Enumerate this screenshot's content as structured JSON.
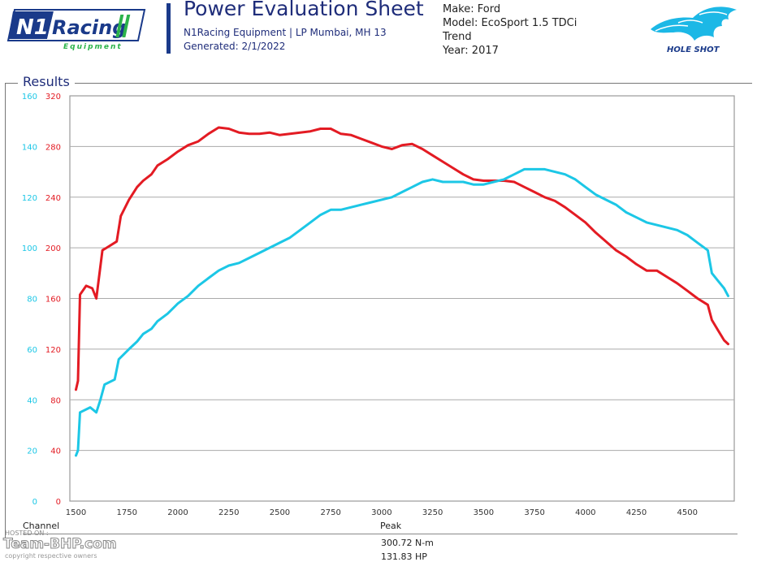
{
  "header": {
    "logo_text": "N1 Racing",
    "logo_sub": "Equipment",
    "title": "Power Evaluation Sheet",
    "subtitle": "N1Racing Equipment | LP Mumbai, MH 13",
    "generated": "Generated: 2/1/2022",
    "right_logo_text": "HOLE SHOT",
    "brand_color": "#1f2d7a"
  },
  "vehicle": {
    "make": "Make: Ford",
    "model": "Model: EcoSport 1.5 TDCi",
    "trend": "Trend",
    "year": "Year: 2017"
  },
  "section": {
    "label": "Results"
  },
  "table": {
    "channel_header": "Channel",
    "peak_header": "Peak",
    "peak_torque": "300.72 N-m",
    "peak_power": "131.83 HP"
  },
  "watermark": {
    "hosted": "HOSTED ON :",
    "brand": "Team-BHP.com",
    "copyright": "copyright respective owners"
  },
  "chart_data": {
    "type": "line",
    "x_ticks": [
      1500,
      1750,
      2000,
      2250,
      2500,
      2750,
      3000,
      3250,
      3500,
      3750,
      4000,
      4250,
      4500
    ],
    "xlim": [
      1470,
      4730
    ],
    "y_left_ticks": [
      0,
      40,
      80,
      120,
      160,
      200,
      240,
      280,
      320
    ],
    "y_left_lim": [
      0,
      320
    ],
    "y_right_ticks": [
      0,
      20,
      40,
      60,
      80,
      100,
      120,
      140,
      160
    ],
    "y_right_lim": [
      0,
      160
    ],
    "grid": true,
    "series": [
      {
        "color": "#e31b23",
        "axis": "left",
        "x": [
          1500,
          1510,
          1520,
          1550,
          1580,
          1600,
          1630,
          1650,
          1700,
          1720,
          1760,
          1800,
          1830,
          1870,
          1900,
          1950,
          2000,
          2050,
          2100,
          2150,
          2200,
          2250,
          2300,
          2350,
          2400,
          2450,
          2500,
          2550,
          2600,
          2650,
          2700,
          2750,
          2800,
          2850,
          2900,
          2950,
          3000,
          3050,
          3100,
          3150,
          3200,
          3250,
          3300,
          3350,
          3400,
          3450,
          3500,
          3550,
          3600,
          3650,
          3700,
          3750,
          3800,
          3850,
          3900,
          3950,
          4000,
          4050,
          4100,
          4150,
          4200,
          4250,
          4300,
          4350,
          4400,
          4450,
          4500,
          4550,
          4600,
          4620,
          4650,
          4680,
          4700
        ],
        "values": [
          88,
          95,
          163,
          170,
          168,
          160,
          198,
          200,
          205,
          225,
          238,
          248,
          253,
          258,
          265,
          270,
          276,
          281,
          284,
          290,
          295,
          294,
          291,
          290,
          290,
          291,
          289,
          290,
          291,
          292,
          294,
          294,
          290,
          289,
          286,
          283,
          280,
          278,
          281,
          282,
          278,
          273,
          268,
          263,
          258,
          254,
          253,
          253,
          253,
          252,
          248,
          244,
          240,
          237,
          232,
          226,
          220,
          212,
          205,
          198,
          193,
          187,
          182,
          182,
          177,
          172,
          166,
          160,
          155,
          143,
          135,
          127,
          124
        ]
      },
      {
        "color": "#1cc7e6",
        "axis": "right",
        "x": [
          1500,
          1510,
          1520,
          1570,
          1600,
          1620,
          1640,
          1690,
          1710,
          1760,
          1800,
          1830,
          1870,
          1900,
          1950,
          2000,
          2050,
          2100,
          2150,
          2200,
          2250,
          2300,
          2350,
          2400,
          2450,
          2500,
          2550,
          2600,
          2650,
          2700,
          2750,
          2800,
          2850,
          2900,
          2950,
          3000,
          3050,
          3100,
          3150,
          3200,
          3250,
          3300,
          3350,
          3400,
          3450,
          3500,
          3550,
          3600,
          3650,
          3700,
          3750,
          3800,
          3850,
          3900,
          3950,
          4000,
          4050,
          4100,
          4150,
          4200,
          4250,
          4300,
          4350,
          4400,
          4450,
          4500,
          4550,
          4600,
          4620,
          4650,
          4680,
          4700
        ],
        "values": [
          18,
          20,
          35,
          37,
          35,
          40,
          46,
          48,
          56,
          60,
          63,
          66,
          68,
          71,
          74,
          78,
          81,
          85,
          88,
          91,
          93,
          94,
          96,
          98,
          100,
          102,
          104,
          107,
          110,
          113,
          115,
          115,
          116,
          117,
          118,
          119,
          120,
          122,
          124,
          126,
          127,
          126,
          126,
          126,
          125,
          125,
          126,
          127,
          129,
          131,
          131,
          131,
          130,
          129,
          127,
          124,
          121,
          119,
          117,
          114,
          112,
          110,
          109,
          108,
          107,
          105,
          102,
          99,
          90,
          87,
          84,
          81
        ]
      }
    ]
  }
}
